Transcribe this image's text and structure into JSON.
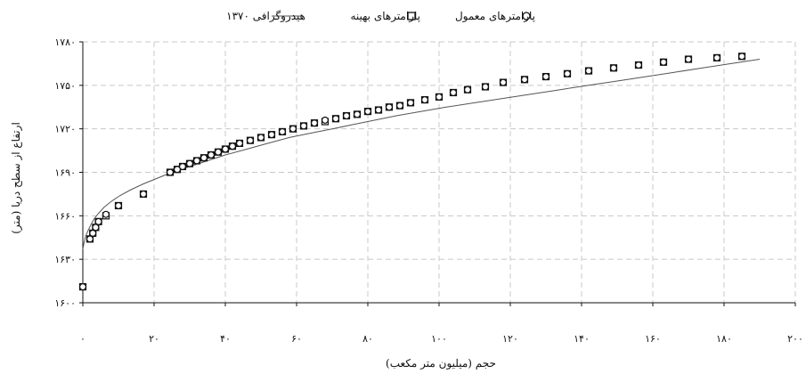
{
  "chart_data": {
    "type": "scatter",
    "title": "",
    "xlabel": "حجم (میلیون متر مکعب)",
    "ylabel": "(ارتفاع از سطح دریا (متر",
    "xlim": [
      0,
      200
    ],
    "ylim": [
      1600,
      1780
    ],
    "grid": true,
    "legend_position": "top",
    "x_ticks": [
      0,
      20,
      40,
      60,
      80,
      100,
      120,
      140,
      160,
      180,
      200
    ],
    "x_tick_labels": [
      "۰",
      "۲۰",
      "۴۰",
      "۶۰",
      "۸۰",
      "۱۰۰",
      "۱۲۰",
      "۱۴۰",
      "۱۶۰",
      "۱۸۰",
      "۲۰۰"
    ],
    "y_ticks": [
      1600,
      1630,
      1660,
      1690,
      1720,
      1750,
      1780
    ],
    "y_tick_labels": [
      "۱۶۰۰",
      "۱۶۳۰",
      "۱۶۶۰",
      "۱۶۹۰",
      "۱۷۲۰",
      "۱۷۵۰",
      "۱۷۸۰"
    ],
    "series": [
      {
        "name": "هیدروگرافی ۱۳۷۰",
        "kind": "line",
        "color": "#555555",
        "x": [
          0,
          0.3,
          0.8,
          1.5,
          2.3,
          3.2,
          4.5,
          6,
          8,
          10.5,
          13.5,
          17,
          21,
          25,
          30,
          35,
          40,
          46,
          52,
          58,
          64,
          70,
          76,
          82,
          88,
          95,
          102,
          110,
          118,
          126,
          134,
          142,
          150,
          158,
          166,
          174,
          182,
          190
        ],
        "values": [
          1637,
          1641,
          1646,
          1650,
          1654,
          1658,
          1662,
          1666,
          1670,
          1674,
          1678,
          1682,
          1686,
          1690,
          1694,
          1698,
          1702,
          1706,
          1710,
          1714,
          1717,
          1720,
          1723,
          1726,
          1729,
          1732,
          1735,
          1738,
          1741,
          1744,
          1747,
          1750,
          1753,
          1756,
          1759,
          1762,
          1765,
          1768
        ]
      },
      {
        "name": "پارامترهای بهینه",
        "kind": "square-marker",
        "color": "#111111",
        "x": [
          0,
          2,
          2.8,
          3.6,
          4.4,
          6.5,
          10,
          17,
          24.5,
          26.5,
          28,
          30,
          32,
          34,
          36,
          38,
          40,
          42,
          44,
          47,
          50,
          53,
          56,
          59,
          62,
          65,
          68,
          71,
          74,
          77,
          80,
          83,
          86,
          89,
          92,
          96,
          100,
          104,
          108,
          113,
          118,
          124,
          130,
          136,
          142,
          149,
          156,
          163,
          170,
          178,
          185
        ],
        "values": [
          1611,
          1644,
          1648,
          1652,
          1656,
          1660,
          1667,
          1675,
          1690,
          1692,
          1694,
          1696,
          1698,
          1700,
          1702,
          1704,
          1706,
          1708,
          1710,
          1712,
          1714,
          1716,
          1718,
          1720,
          1722,
          1724,
          1725,
          1727,
          1729,
          1730,
          1732,
          1733,
          1735,
          1736,
          1738,
          1740,
          1742,
          1745,
          1747,
          1749,
          1752,
          1754,
          1756,
          1758,
          1760,
          1762,
          1764,
          1766,
          1768,
          1769,
          1770
        ]
      },
      {
        "name": "پارامترهای معمول",
        "kind": "circle-marker",
        "color": "#111111",
        "x": [
          0,
          2,
          2.8,
          3.6,
          4.4,
          6.5,
          10,
          17,
          24.5,
          26.5,
          28,
          30,
          32,
          34,
          36,
          38,
          40,
          42,
          44,
          47,
          50,
          53,
          56,
          59,
          62,
          65,
          68,
          71,
          74,
          77,
          80,
          83,
          86,
          89,
          92,
          96,
          100,
          104,
          108,
          113,
          118,
          124,
          130,
          136,
          142,
          149,
          156,
          163,
          170,
          178,
          185
        ],
        "values": [
          1611,
          1644,
          1648,
          1652,
          1656,
          1661,
          1667,
          1675,
          1690,
          1692,
          1694,
          1696,
          1698,
          1700,
          1702,
          1704,
          1706,
          1708,
          1710,
          1712,
          1714,
          1716,
          1718,
          1720,
          1722,
          1724,
          1726,
          1727,
          1729,
          1730,
          1732,
          1733,
          1735,
          1736,
          1738,
          1740,
          1742,
          1745,
          1747,
          1749,
          1752,
          1754,
          1756,
          1758,
          1760,
          1762,
          1764,
          1766,
          1768,
          1769,
          1770
        ]
      }
    ]
  }
}
